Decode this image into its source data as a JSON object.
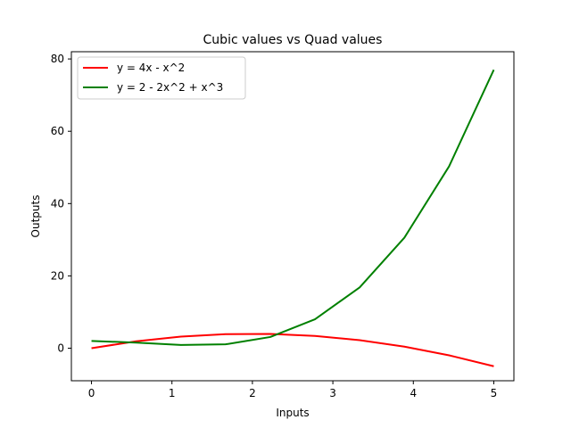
{
  "chart_data": {
    "type": "line",
    "title": "Cubic values vs Quad values",
    "xlabel": "Inputs",
    "ylabel": "Outputs",
    "xlim": [
      -0.25,
      5.25
    ],
    "ylim": [
      -9,
      82
    ],
    "xticks": [
      0,
      1,
      2,
      3,
      4,
      5
    ],
    "yticks": [
      0,
      20,
      40,
      60,
      80
    ],
    "grid": false,
    "legend_position": "top-left",
    "x": [
      0,
      0.5556,
      1.1111,
      1.6667,
      2.2222,
      2.7778,
      3.3333,
      3.8889,
      4.4444,
      5.0
    ],
    "series": [
      {
        "name": "y = 4x - x^2",
        "color": "#ff0000",
        "values": [
          0.0,
          1.914,
          3.21,
          3.889,
          3.951,
          3.395,
          2.222,
          0.432,
          -1.975,
          -5.0
        ]
      },
      {
        "name": "y = 2 - 2x^2 + x^3",
        "color": "#008000",
        "values": [
          2.0,
          1.554,
          0.903,
          1.074,
          3.097,
          8.0,
          16.815,
          30.569,
          50.293,
          77.0
        ]
      }
    ]
  }
}
